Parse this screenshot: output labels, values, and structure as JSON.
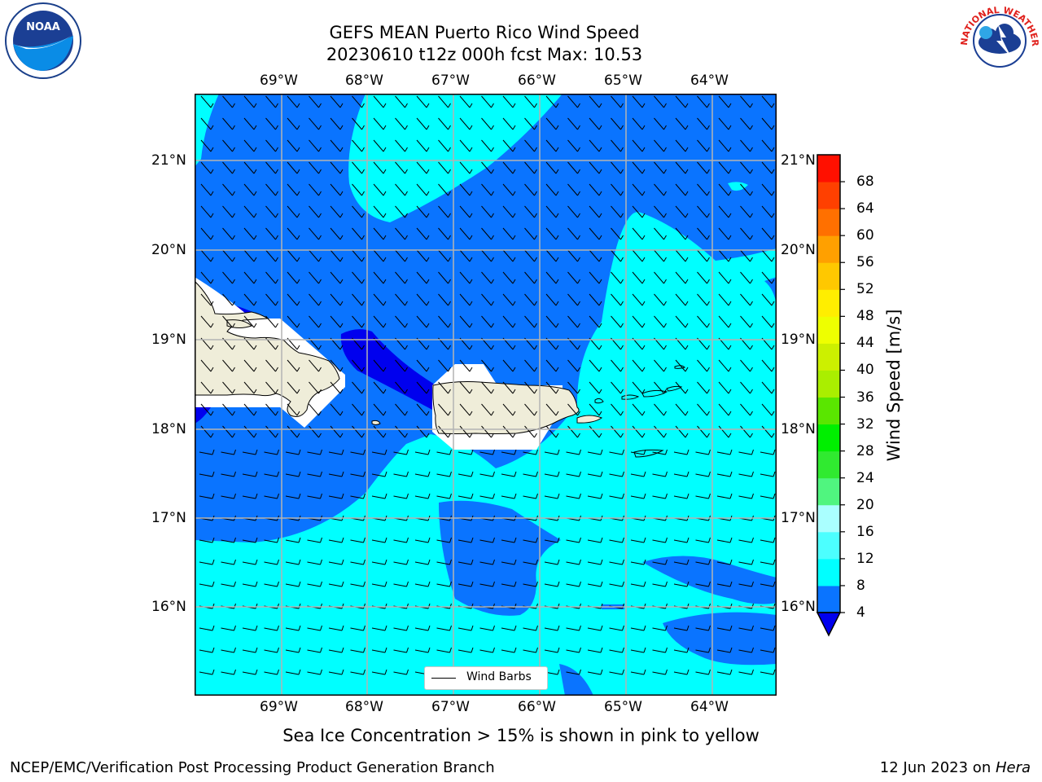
{
  "header": {
    "title_line1": "GEFS MEAN Puerto Rico Wind Speed",
    "title_line2": "20230610 t12z 000h fcst   Max: 10.53"
  },
  "logos": {
    "left_text": "NOAA",
    "right_text": "NATIONAL WEATHER SERVICE"
  },
  "map": {
    "lon_labels": [
      "69°W",
      "68°W",
      "67°W",
      "66°W",
      "65°W",
      "64°W"
    ],
    "lat_labels": [
      "21°N",
      "20°N",
      "19°N",
      "18°N",
      "17°N",
      "16°N"
    ],
    "legend_label": "Wind Barbs",
    "colors": {
      "dark_blue": "#0000ee",
      "mid_blue": "#0a74ff",
      "cyan": "#00ffff",
      "land": "#efedd9",
      "masked": "#ffffff"
    }
  },
  "colorbar": {
    "label": "Wind Speed [m/s]",
    "ticks": [
      "4",
      "8",
      "12",
      "16",
      "20",
      "24",
      "28",
      "32",
      "36",
      "40",
      "44",
      "48",
      "52",
      "56",
      "60",
      "64",
      "68"
    ],
    "colors": [
      "#0a74ff",
      "#00ffff",
      "#4cffff",
      "#aaffff",
      "#50f57f",
      "#30ea30",
      "#00ef00",
      "#5ae600",
      "#aaee00",
      "#ccf000",
      "#eeff00",
      "#ffee00",
      "#ffc800",
      "#ffa000",
      "#ff7000",
      "#ff4000",
      "#ff1000"
    ],
    "extend_color": "#0000ee"
  },
  "footer": {
    "note": "Sea Ice Concentration > 15% is shown in pink to yellow",
    "left": "NCEP/EMC/Verification Post Processing Product Generation Branch",
    "right_prefix": "12 Jun 2023 on ",
    "right_host": "Hera"
  }
}
